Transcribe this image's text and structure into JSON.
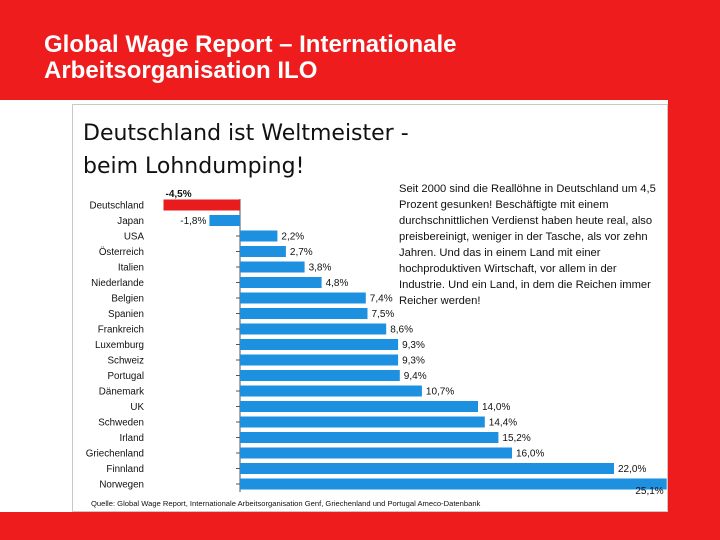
{
  "slide": {
    "title_line1": "Global Wage Report – Internationale",
    "title_line2": "Arbeitsorganisation ILO"
  },
  "panel": {
    "headline_line1": "Deutschland ist Weltmeister -",
    "headline_line2": "beim Lohndumping!",
    "note": "Seit 2000 sind die Reallöhne in Deutschland um 4,5 Prozent gesunken! Beschäftigte mit einem durchschnittlichen Verdienst haben heute real, also preisbereinigt, weniger in der Tasche, als vor zehn Jahren. Und das in einem Land mit einer hochproduktiven Wirtschaft, vor allem in der Industrie. Und ein Land, in dem die Reichen immer Reicher werden!",
    "source": "Quelle: Global Wage Report, Internationale Arbeitsorganisation Genf, Griechenland und Portugal Ameco-Datenbank"
  },
  "colors": {
    "band": "#ee1c1c",
    "bar_positive": "#1e90e0",
    "bar_highlight": "#e81c1c"
  },
  "chart_data": {
    "type": "bar",
    "orientation": "horizontal",
    "categories": [
      "Deutschland",
      "Japan",
      "USA",
      "Österreich",
      "Italien",
      "Niederlande",
      "Belgien",
      "Spanien",
      "Frankreich",
      "Luxemburg",
      "Schweiz",
      "Portugal",
      "Dänemark",
      "UK",
      "Schweden",
      "Irland",
      "Griechenland",
      "Finnland",
      "Norwegen"
    ],
    "values": [
      -4.5,
      -1.8,
      2.2,
      2.7,
      3.8,
      4.8,
      7.4,
      7.5,
      8.6,
      9.3,
      9.3,
      9.4,
      10.7,
      14.0,
      14.4,
      15.2,
      16.0,
      22.0,
      25.1
    ],
    "data_labels": [
      "-4,5%",
      "-1,8%",
      "2,2%",
      "2,7%",
      "3,8%",
      "4,8%",
      "7,4%",
      "7,5%",
      "8,6%",
      "9,3%",
      "9,3%",
      "9,4%",
      "10,7%",
      "14,0%",
      "14,4%",
      "15,2%",
      "16,0%",
      "22,0%",
      "25,1%"
    ],
    "highlight": "Deutschland",
    "title": "Deutschland ist Weltmeister - beim Lohndumping!",
    "xlabel": "",
    "ylabel": "",
    "grid": false
  }
}
